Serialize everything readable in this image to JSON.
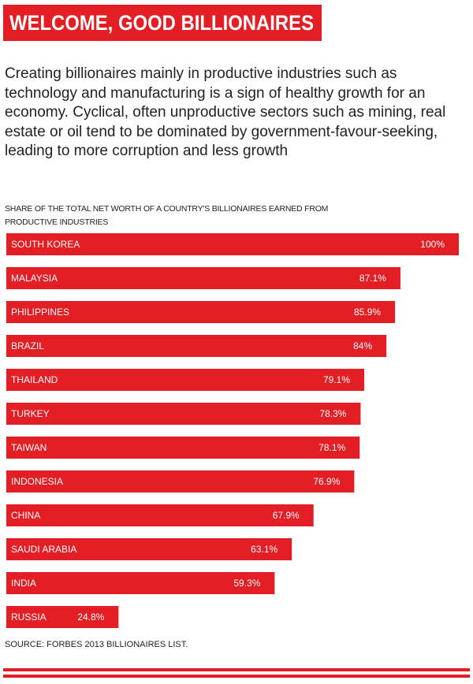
{
  "chart_data": {
    "type": "bar",
    "orientation": "horizontal",
    "title": "WELCOME, GOOD BILLIONAIRES",
    "subtitle": "Creating billionaires mainly in productive industries such as technology and manufacturing is a sign of healthy growth for an economy. Cyclical, often unproductive sectors such as mining, real estate or oil tend to be dominated by government-favour-seeking, leading to more corruption and less growth",
    "xlabel": "SHARE OF THE TOTAL NET WORTH OF A COUNTRY'S BILLIONAIRES EARNED FROM PRODUCTIVE INDUSTRIES",
    "categories": [
      "SOUTH KOREA",
      "MALAYSIA",
      "PHILIPPINES",
      "BRAZIL",
      "THAILAND",
      "TURKEY",
      "TAIWAN",
      "INDONESIA",
      "CHINA",
      "SAUDI ARABIA",
      "INDIA",
      "RUSSIA"
    ],
    "values": [
      100,
      87.1,
      85.9,
      84,
      79.1,
      78.3,
      78.1,
      76.9,
      67.9,
      63.1,
      59.3,
      24.8
    ],
    "value_labels": [
      "100%",
      "87.1%",
      "85.9%",
      "84%",
      "79.1%",
      "78.3%",
      "78.1%",
      "76.9%",
      "67.9%",
      "63.1%",
      "59.3%",
      "24.8%"
    ],
    "xlim": [
      0,
      100
    ],
    "color": "#e31e24",
    "source": "SOURCE: FORBES 2013 BILLIONAIRES LIST."
  }
}
